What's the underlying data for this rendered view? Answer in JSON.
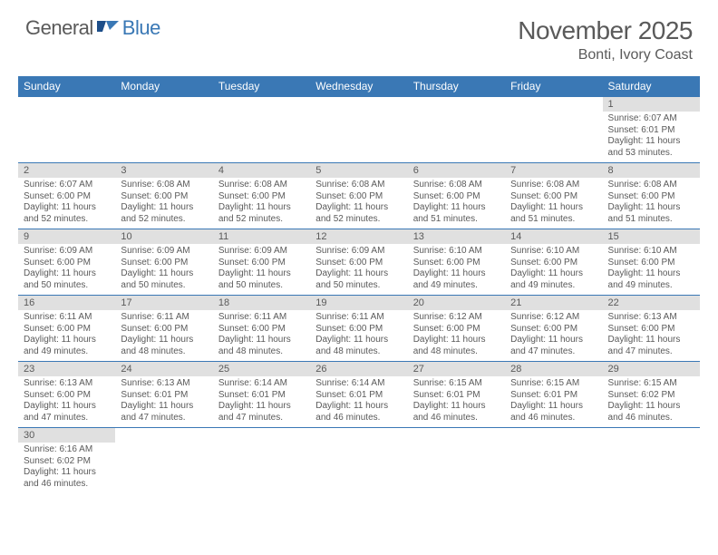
{
  "logo": {
    "text1": "General",
    "text2": "Blue"
  },
  "title": {
    "month": "November 2025",
    "location": "Bonti, Ivory Coast"
  },
  "colors": {
    "header_bg": "#3a78b5",
    "header_fg": "#ffffff",
    "daynum_bg": "#e0e0e0",
    "text": "#5a5a5a",
    "rule": "#3a78b5"
  },
  "dayNames": [
    "Sunday",
    "Monday",
    "Tuesday",
    "Wednesday",
    "Thursday",
    "Friday",
    "Saturday"
  ],
  "labels": {
    "sunrise": "Sunrise:",
    "sunset": "Sunset:",
    "daylight": "Daylight:"
  },
  "weeks": [
    [
      null,
      null,
      null,
      null,
      null,
      null,
      {
        "n": "1",
        "sr": "6:07 AM",
        "ss": "6:01 PM",
        "dl": "11 hours and 53 minutes."
      }
    ],
    [
      {
        "n": "2",
        "sr": "6:07 AM",
        "ss": "6:00 PM",
        "dl": "11 hours and 52 minutes."
      },
      {
        "n": "3",
        "sr": "6:08 AM",
        "ss": "6:00 PM",
        "dl": "11 hours and 52 minutes."
      },
      {
        "n": "4",
        "sr": "6:08 AM",
        "ss": "6:00 PM",
        "dl": "11 hours and 52 minutes."
      },
      {
        "n": "5",
        "sr": "6:08 AM",
        "ss": "6:00 PM",
        "dl": "11 hours and 52 minutes."
      },
      {
        "n": "6",
        "sr": "6:08 AM",
        "ss": "6:00 PM",
        "dl": "11 hours and 51 minutes."
      },
      {
        "n": "7",
        "sr": "6:08 AM",
        "ss": "6:00 PM",
        "dl": "11 hours and 51 minutes."
      },
      {
        "n": "8",
        "sr": "6:08 AM",
        "ss": "6:00 PM",
        "dl": "11 hours and 51 minutes."
      }
    ],
    [
      {
        "n": "9",
        "sr": "6:09 AM",
        "ss": "6:00 PM",
        "dl": "11 hours and 50 minutes."
      },
      {
        "n": "10",
        "sr": "6:09 AM",
        "ss": "6:00 PM",
        "dl": "11 hours and 50 minutes."
      },
      {
        "n": "11",
        "sr": "6:09 AM",
        "ss": "6:00 PM",
        "dl": "11 hours and 50 minutes."
      },
      {
        "n": "12",
        "sr": "6:09 AM",
        "ss": "6:00 PM",
        "dl": "11 hours and 50 minutes."
      },
      {
        "n": "13",
        "sr": "6:10 AM",
        "ss": "6:00 PM",
        "dl": "11 hours and 49 minutes."
      },
      {
        "n": "14",
        "sr": "6:10 AM",
        "ss": "6:00 PM",
        "dl": "11 hours and 49 minutes."
      },
      {
        "n": "15",
        "sr": "6:10 AM",
        "ss": "6:00 PM",
        "dl": "11 hours and 49 minutes."
      }
    ],
    [
      {
        "n": "16",
        "sr": "6:11 AM",
        "ss": "6:00 PM",
        "dl": "11 hours and 49 minutes."
      },
      {
        "n": "17",
        "sr": "6:11 AM",
        "ss": "6:00 PM",
        "dl": "11 hours and 48 minutes."
      },
      {
        "n": "18",
        "sr": "6:11 AM",
        "ss": "6:00 PM",
        "dl": "11 hours and 48 minutes."
      },
      {
        "n": "19",
        "sr": "6:11 AM",
        "ss": "6:00 PM",
        "dl": "11 hours and 48 minutes."
      },
      {
        "n": "20",
        "sr": "6:12 AM",
        "ss": "6:00 PM",
        "dl": "11 hours and 48 minutes."
      },
      {
        "n": "21",
        "sr": "6:12 AM",
        "ss": "6:00 PM",
        "dl": "11 hours and 47 minutes."
      },
      {
        "n": "22",
        "sr": "6:13 AM",
        "ss": "6:00 PM",
        "dl": "11 hours and 47 minutes."
      }
    ],
    [
      {
        "n": "23",
        "sr": "6:13 AM",
        "ss": "6:00 PM",
        "dl": "11 hours and 47 minutes."
      },
      {
        "n": "24",
        "sr": "6:13 AM",
        "ss": "6:01 PM",
        "dl": "11 hours and 47 minutes."
      },
      {
        "n": "25",
        "sr": "6:14 AM",
        "ss": "6:01 PM",
        "dl": "11 hours and 47 minutes."
      },
      {
        "n": "26",
        "sr": "6:14 AM",
        "ss": "6:01 PM",
        "dl": "11 hours and 46 minutes."
      },
      {
        "n": "27",
        "sr": "6:15 AM",
        "ss": "6:01 PM",
        "dl": "11 hours and 46 minutes."
      },
      {
        "n": "28",
        "sr": "6:15 AM",
        "ss": "6:01 PM",
        "dl": "11 hours and 46 minutes."
      },
      {
        "n": "29",
        "sr": "6:15 AM",
        "ss": "6:02 PM",
        "dl": "11 hours and 46 minutes."
      }
    ],
    [
      {
        "n": "30",
        "sr": "6:16 AM",
        "ss": "6:02 PM",
        "dl": "11 hours and 46 minutes."
      },
      null,
      null,
      null,
      null,
      null,
      null
    ]
  ]
}
